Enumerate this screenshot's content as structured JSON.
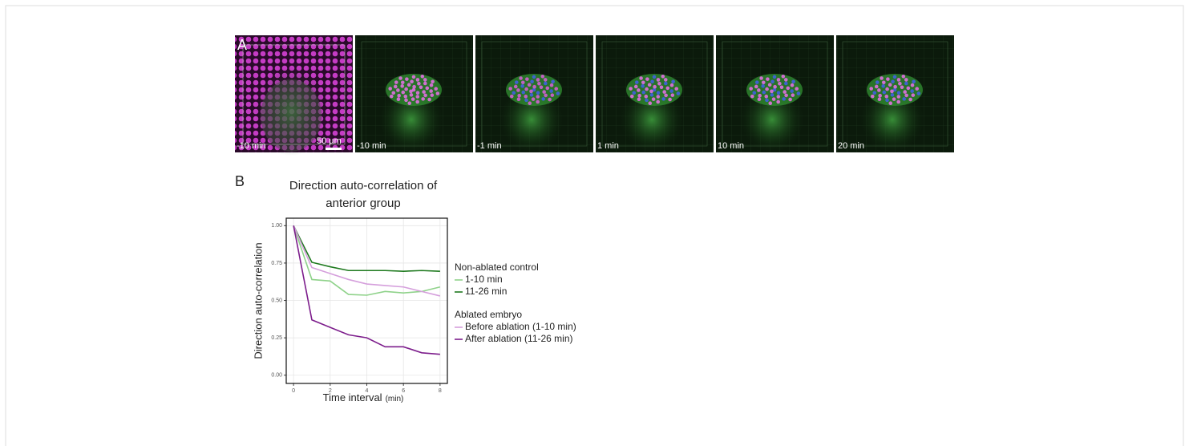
{
  "panel_a": {
    "label": "A",
    "scale_bar": "50 µm",
    "images": [
      {
        "time": "-10 min"
      },
      {
        "time": "-10 min"
      },
      {
        "time": "-1 min"
      },
      {
        "time": "1 min"
      },
      {
        "time": "10 min"
      },
      {
        "time": "20 min"
      }
    ]
  },
  "panel_b": {
    "label": "B"
  },
  "chart_data": {
    "type": "line",
    "title": [
      "Direction auto-correlation of",
      "anterior group"
    ],
    "xlabel": "Time interval",
    "xlabel_unit": "(min)",
    "ylabel": "Direction auto-correlation",
    "x": [
      0,
      1,
      2,
      3,
      4,
      5,
      6,
      7,
      8
    ],
    "xlim": [
      -0.4,
      8.4
    ],
    "xticks": [
      0,
      2,
      4,
      6,
      8
    ],
    "ylim": [
      -0.055,
      1.05
    ],
    "yticks": [
      {
        "value": 0,
        "label": "0.00"
      },
      {
        "value": 0.25,
        "label": "0.25"
      },
      {
        "value": 0.5,
        "label": "0.50"
      },
      {
        "value": 0.75,
        "label": "0.75"
      },
      {
        "value": 1,
        "label": "1.00"
      }
    ],
    "grid": true,
    "series": [
      {
        "name": "1-10 min",
        "group": "Non-ablated control",
        "color": "#8fd28a",
        "values": [
          1.0,
          0.64,
          0.63,
          0.54,
          0.535,
          0.56,
          0.55,
          0.56,
          0.59
        ]
      },
      {
        "name": "11-26 min",
        "group": "Non-ablated control",
        "color": "#1f7a1f",
        "values": [
          1.0,
          0.755,
          0.725,
          0.7,
          0.7,
          0.7,
          0.695,
          0.7,
          0.695
        ]
      },
      {
        "name": "Before ablation (1-10 min)",
        "group": "Ablated embryo",
        "color": "#d59fdc",
        "values": [
          1.0,
          0.72,
          0.68,
          0.64,
          0.61,
          0.6,
          0.59,
          0.56,
          0.53
        ]
      },
      {
        "name": "After ablation (11-26 min)",
        "group": "Ablated embryo",
        "color": "#7d1e8c",
        "values": [
          1.0,
          0.37,
          0.32,
          0.27,
          0.25,
          0.19,
          0.19,
          0.15,
          0.14
        ]
      }
    ]
  }
}
